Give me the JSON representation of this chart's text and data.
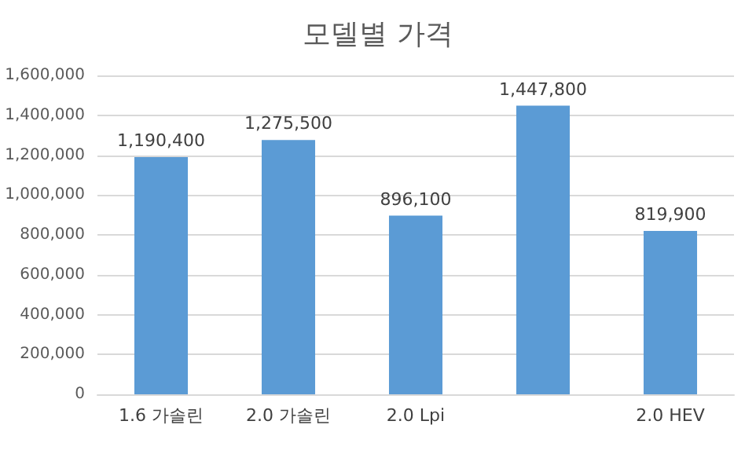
{
  "chart_data": {
    "type": "bar",
    "title": "모델별 가격",
    "categories": [
      "1.6 가솔린",
      "2.0 가솔린",
      "2.0 Lpi",
      null,
      "2.0 HEV"
    ],
    "values": [
      1190400,
      1275500,
      896100,
      1447800,
      819900
    ],
    "value_labels": [
      "1,190,400",
      "1,275,500",
      "896,100",
      "1,447,800",
      "819,900"
    ],
    "color": "#5b9bd5",
    "ylim": [
      0,
      1600000
    ],
    "yticks": [
      0,
      {
        "value": 200000,
        "label": "200,000"
      },
      {
        "value": 400000,
        "label": "400,000"
      },
      {
        "value": 600000,
        "label": "600,000"
      },
      {
        "value": 800000,
        "label": "800,000"
      },
      {
        "value": 1000000,
        "label": "1,000,000"
      },
      {
        "value": 1200000,
        "label": "1,200,000"
      },
      {
        "value": 1400000,
        "label": "1,400,000"
      },
      {
        "value": 1600000,
        "label": "1,600,000"
      }
    ],
    "grid": "y"
  }
}
